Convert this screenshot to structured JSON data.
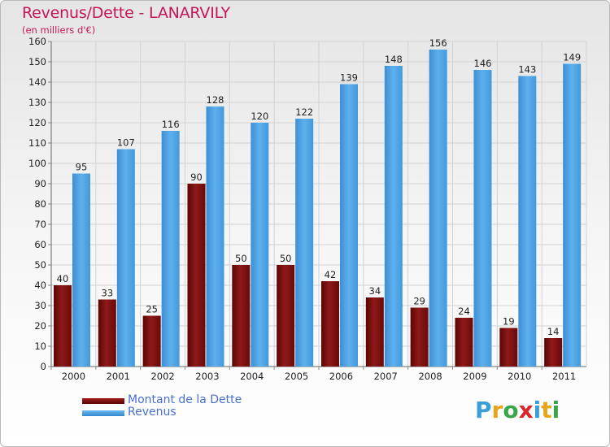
{
  "chart_data": {
    "type": "bar",
    "title": "Revenus/Dette - LANARVILY",
    "subtitle": "(en milliers d'€)",
    "categories": [
      "2000",
      "2001",
      "2002",
      "2003",
      "2004",
      "2005",
      "2006",
      "2007",
      "2008",
      "2009",
      "2010",
      "2011"
    ],
    "series": [
      {
        "name": "Montant de la Dette",
        "values": [
          40,
          33,
          25,
          90,
          50,
          50,
          42,
          34,
          29,
          24,
          19,
          14
        ],
        "color": "#7a0d0d"
      },
      {
        "name": "Revenus",
        "values": [
          95,
          107,
          116,
          128,
          120,
          122,
          139,
          148,
          156,
          146,
          143,
          149
        ],
        "color": "#4aa3e8"
      }
    ],
    "ylim": [
      0,
      160
    ],
    "yticks": [
      0,
      10,
      20,
      30,
      40,
      50,
      60,
      70,
      80,
      90,
      100,
      110,
      120,
      130,
      140,
      150,
      160
    ],
    "grid": true,
    "legend_position": "bottom-left"
  },
  "logo": {
    "letters": [
      "P",
      "r",
      "o",
      "x",
      "i",
      "t",
      "i"
    ],
    "colors": [
      "#3a9fd8",
      "#e8a41a",
      "#3aa64a",
      "#d8262c",
      "#3a9fd8",
      "#e8a41a",
      "#3aa64a"
    ]
  }
}
